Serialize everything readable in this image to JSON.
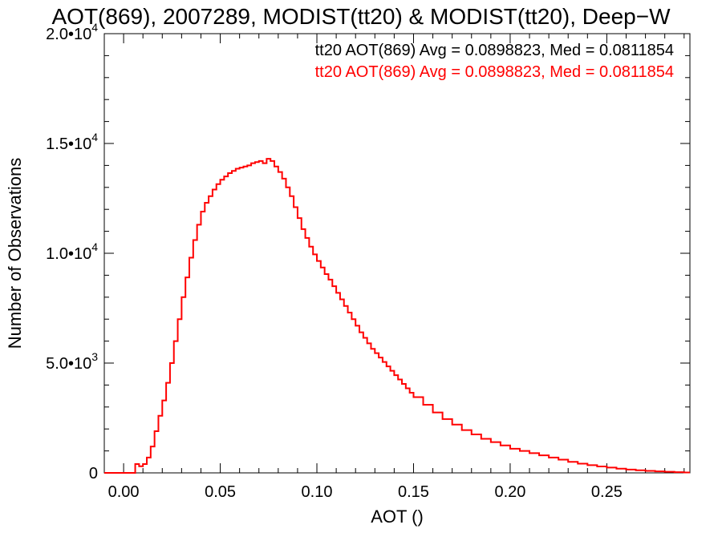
{
  "chart_data": {
    "type": "line",
    "title": "AOT(869), 2007289, MODIST(tt20) & MODIST(tt20), Deep−W",
    "xlabel": "AOT ()",
    "ylabel": "Number of Observations",
    "xlim": [
      -0.01,
      0.293
    ],
    "ylim": [
      0,
      20000
    ],
    "x_ticks": [
      {
        "value": 0.0,
        "label": "0.00"
      },
      {
        "value": 0.05,
        "label": "0.05"
      },
      {
        "value": 0.1,
        "label": "0.10"
      },
      {
        "value": 0.15,
        "label": "0.15"
      },
      {
        "value": 0.2,
        "label": "0.20"
      },
      {
        "value": 0.25,
        "label": "0.25"
      }
    ],
    "y_ticks": [
      {
        "value": 0,
        "mantissa": "0",
        "exponent": ""
      },
      {
        "value": 5000,
        "mantissa": "5.0•10",
        "exponent": "3"
      },
      {
        "value": 10000,
        "mantissa": "1.0•10",
        "exponent": "4"
      },
      {
        "value": 15000,
        "mantissa": "1.5•10",
        "exponent": "4"
      },
      {
        "value": 20000,
        "mantissa": "2.0•10",
        "exponent": "4"
      }
    ],
    "annotations": [
      {
        "text": "tt20 AOT(869) Avg = 0.0898823, Med = 0.0811854",
        "color": "#000000"
      },
      {
        "text": "tt20 AOT(869) Avg = 0.0898823, Med = 0.0811854",
        "color": "#ff0000"
      }
    ],
    "series": [
      {
        "color": "#ff0000",
        "style": "step",
        "x": [
          -0.01,
          0.005,
          0.006,
          0.008,
          0.01,
          0.012,
          0.014,
          0.016,
          0.018,
          0.02,
          0.022,
          0.024,
          0.026,
          0.028,
          0.03,
          0.032,
          0.034,
          0.036,
          0.038,
          0.04,
          0.042,
          0.044,
          0.046,
          0.048,
          0.05,
          0.052,
          0.054,
          0.056,
          0.058,
          0.06,
          0.062,
          0.064,
          0.066,
          0.068,
          0.07,
          0.072,
          0.074,
          0.076,
          0.078,
          0.08,
          0.082,
          0.084,
          0.086,
          0.088,
          0.09,
          0.092,
          0.094,
          0.096,
          0.098,
          0.1,
          0.102,
          0.104,
          0.106,
          0.108,
          0.11,
          0.112,
          0.114,
          0.116,
          0.118,
          0.12,
          0.122,
          0.124,
          0.126,
          0.128,
          0.13,
          0.132,
          0.134,
          0.136,
          0.138,
          0.14,
          0.142,
          0.144,
          0.146,
          0.148,
          0.15,
          0.155,
          0.16,
          0.165,
          0.17,
          0.175,
          0.18,
          0.185,
          0.19,
          0.195,
          0.2,
          0.205,
          0.21,
          0.215,
          0.22,
          0.225,
          0.23,
          0.235,
          0.24,
          0.245,
          0.25,
          0.255,
          0.26,
          0.265,
          0.27,
          0.275,
          0.28,
          0.285,
          0.29
        ],
        "y": [
          0,
          0,
          400,
          300,
          400,
          700,
          1200,
          1900,
          2600,
          3300,
          4100,
          5000,
          6000,
          7000,
          8000,
          8900,
          9800,
          10600,
          11300,
          11900,
          12300,
          12600,
          12900,
          13150,
          13350,
          13500,
          13650,
          13750,
          13850,
          13900,
          13950,
          14000,
          14100,
          14150,
          14200,
          14100,
          14300,
          14200,
          13950,
          13700,
          13400,
          13000,
          12600,
          12100,
          11600,
          11100,
          10700,
          10300,
          9950,
          9650,
          9350,
          9050,
          8800,
          8500,
          8200,
          7900,
          7600,
          7300,
          7000,
          6700,
          6400,
          6150,
          5900,
          5650,
          5450,
          5250,
          5050,
          4850,
          4650,
          4450,
          4250,
          4050,
          3850,
          3650,
          3450,
          3100,
          2750,
          2450,
          2200,
          1950,
          1750,
          1550,
          1400,
          1250,
          1100,
          1000,
          900,
          800,
          700,
          600,
          500,
          420,
          350,
          290,
          240,
          190,
          150,
          120,
          90,
          70,
          50,
          30,
          20
        ]
      }
    ]
  }
}
